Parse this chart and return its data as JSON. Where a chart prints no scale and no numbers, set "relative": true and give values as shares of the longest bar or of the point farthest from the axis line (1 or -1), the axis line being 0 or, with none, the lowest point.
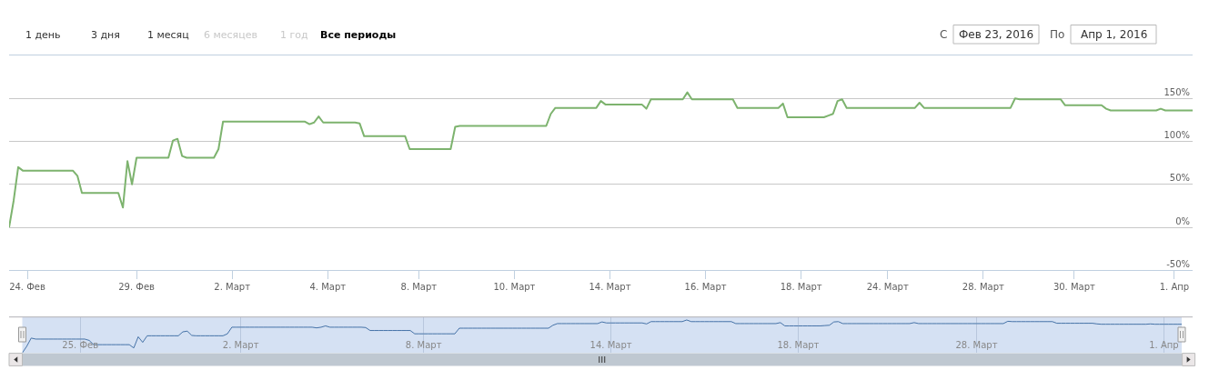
{
  "chart_data": [
    {
      "type": "line",
      "categories": [
        null,
        null,
        null,
        null,
        "24. Фев",
        null,
        null,
        null,
        null,
        null,
        null,
        null,
        null,
        null,
        null,
        null,
        null,
        null,
        null,
        null,
        null,
        null,
        null,
        null,
        null,
        null,
        null,
        null,
        "29. Фев",
        null,
        null,
        null,
        null,
        null,
        null,
        null,
        null,
        null,
        null,
        null,
        null,
        null,
        null,
        null,
        null,
        null,
        null,
        null,
        null,
        "2. Март",
        null,
        null,
        null,
        null,
        null,
        null,
        null,
        null,
        null,
        null,
        null,
        null,
        null,
        null,
        null,
        null,
        null,
        null,
        null,
        null,
        "4. Март",
        null,
        null,
        null,
        null,
        null,
        null,
        null,
        null,
        null,
        null,
        null,
        null,
        null,
        null,
        null,
        null,
        null,
        null,
        null,
        "8. Март",
        null,
        null,
        null,
        null,
        null,
        null,
        null,
        null,
        null,
        null,
        null,
        null,
        null,
        null,
        null,
        null,
        null,
        null,
        null,
        null,
        "10. Март",
        null,
        null,
        null,
        null,
        null,
        null,
        null,
        null,
        null,
        null,
        null,
        null,
        null,
        null,
        null,
        null,
        null,
        null,
        null,
        null,
        "14. Март",
        null,
        null,
        null,
        null,
        null,
        null,
        null,
        null,
        null,
        null,
        null,
        null,
        null,
        null,
        null,
        null,
        null,
        null,
        null,
        null,
        "16. Март",
        null,
        null,
        null,
        null,
        null,
        null,
        null,
        null,
        null,
        null,
        null,
        null,
        null,
        null,
        null,
        null,
        null,
        null,
        null,
        null,
        "18. Март",
        null,
        null,
        null,
        null,
        null,
        null,
        null,
        null,
        null,
        null,
        null,
        null,
        null,
        null,
        null,
        null,
        null,
        null,
        "24. Март",
        null,
        null,
        null,
        null,
        null,
        null,
        null,
        null,
        null,
        null,
        null,
        null,
        null,
        null,
        null,
        null,
        null,
        null,
        null,
        null,
        "28. Март",
        null,
        null,
        null,
        null,
        null,
        null,
        null,
        null,
        null,
        null,
        null,
        null,
        null,
        null,
        null,
        null,
        null,
        null,
        null,
        "30. Март",
        null,
        null,
        null,
        null,
        null,
        null,
        null,
        null,
        null,
        null,
        null,
        null,
        null,
        null,
        null,
        null,
        null,
        null,
        null,
        null,
        null,
        "1. Апр",
        null,
        null,
        null,
        null
      ],
      "series": [
        {
          "color": "#7db36e",
          "values": [
            0,
            31,
            70,
            66,
            66,
            66,
            66,
            66,
            66,
            66,
            66,
            66,
            66,
            66,
            66,
            60,
            40,
            40,
            40,
            40,
            40,
            40,
            40,
            40,
            40,
            23,
            77,
            50,
            81,
            81,
            81,
            81,
            81,
            81,
            81,
            81,
            101,
            103,
            83,
            81,
            81,
            81,
            81,
            81,
            81,
            81,
            91,
            123,
            123,
            123,
            123,
            123,
            123,
            123,
            123,
            123,
            123,
            123,
            123,
            123,
            123,
            123,
            123,
            123,
            123,
            123,
            120,
            122,
            129,
            122,
            122,
            122,
            122,
            122,
            122,
            122,
            122,
            121,
            106,
            106,
            106,
            106,
            106,
            106,
            106,
            106,
            106,
            106,
            91,
            91,
            91,
            91,
            91,
            91,
            91,
            91,
            91,
            91,
            117,
            118,
            118,
            118,
            118,
            118,
            118,
            118,
            118,
            118,
            118,
            118,
            118,
            118,
            118,
            118,
            118,
            118,
            118,
            118,
            118,
            132,
            139,
            139,
            139,
            139,
            139,
            139,
            139,
            139,
            139,
            139,
            147,
            143,
            143,
            143,
            143,
            143,
            143,
            143,
            143,
            143,
            138,
            149,
            149,
            149,
            149,
            149,
            149,
            149,
            149,
            157,
            149,
            149,
            149,
            149,
            149,
            149,
            149,
            149,
            149,
            149,
            139,
            139,
            139,
            139,
            139,
            139,
            139,
            139,
            139,
            139,
            144,
            128,
            128,
            128,
            128,
            128,
            128,
            128,
            128,
            128,
            130,
            132,
            147,
            149,
            139,
            139,
            139,
            139,
            139,
            139,
            139,
            139,
            139,
            139,
            139,
            139,
            139,
            139,
            139,
            139,
            145,
            139,
            139,
            139,
            139,
            139,
            139,
            139,
            139,
            139,
            139,
            139,
            139,
            139,
            139,
            139,
            139,
            139,
            139,
            139,
            139,
            150,
            149,
            149,
            149,
            149,
            149,
            149,
            149,
            149,
            149,
            149,
            142,
            142,
            142,
            142,
            142,
            142,
            142,
            142,
            142,
            138,
            136,
            136,
            136,
            136,
            136,
            136,
            136,
            136,
            136,
            136,
            136,
            138,
            136,
            136,
            136,
            136,
            136,
            136,
            136
          ]
        }
      ],
      "ylim": [
        -50,
        200
      ],
      "yticks": [
        {
          "value": -50,
          "label": "-50%"
        },
        {
          "value": 0,
          "label": "0%"
        },
        {
          "value": 50,
          "label": "50%"
        },
        {
          "value": 100,
          "label": "100%"
        },
        {
          "value": 150,
          "label": "150%"
        },
        {
          "value": 200,
          "label": null
        }
      ],
      "grid": "y",
      "annotations": [
        "1 день",
        "3 дня",
        "1 месяц",
        "6 месяцев",
        "1 год",
        "Все периоды",
        "С",
        "Фев 23, 2016",
        "По",
        "Апр 1, 2016"
      ]
    },
    {
      "type": "line",
      "relative": true,
      "categories": [
        null,
        null,
        null,
        null,
        null,
        null,
        null,
        null,
        null,
        null,
        null,
        null,
        null,
        "25. Фев",
        null,
        null,
        null,
        null,
        null,
        null,
        null,
        null,
        null,
        null,
        null,
        null,
        null,
        null,
        null,
        null,
        null,
        null,
        null,
        null,
        null,
        null,
        null,
        null,
        null,
        null,
        null,
        null,
        null,
        null,
        null,
        null,
        null,
        null,
        null,
        "2. Март",
        null,
        null,
        null,
        null,
        null,
        null,
        null,
        null,
        null,
        null,
        null,
        null,
        null,
        null,
        null,
        null,
        null,
        null,
        null,
        null,
        null,
        null,
        null,
        null,
        null,
        null,
        null,
        null,
        null,
        null,
        null,
        null,
        null,
        null,
        null,
        null,
        null,
        null,
        null,
        null,
        "8. Март",
        null,
        null,
        null,
        null,
        null,
        null,
        null,
        null,
        null,
        null,
        null,
        null,
        null,
        null,
        null,
        null,
        null,
        null,
        null,
        null,
        null,
        null,
        null,
        null,
        null,
        null,
        null,
        null,
        null,
        null,
        null,
        null,
        null,
        null,
        null,
        null,
        null,
        null,
        null,
        null,
        null,
        "14. Март",
        null,
        null,
        null,
        null,
        null,
        null,
        null,
        null,
        null,
        null,
        null,
        null,
        null,
        null,
        null,
        null,
        null,
        null,
        null,
        null,
        null,
        null,
        null,
        null,
        null,
        null,
        null,
        null,
        null,
        null,
        null,
        null,
        null,
        null,
        null,
        null,
        null,
        null,
        null,
        null,
        null,
        "18. Март",
        null,
        null,
        null,
        null,
        null,
        null,
        null,
        null,
        null,
        null,
        null,
        null,
        null,
        null,
        null,
        null,
        null,
        null,
        null,
        null,
        null,
        null,
        null,
        null,
        null,
        null,
        null,
        null,
        null,
        null,
        null,
        null,
        null,
        null,
        null,
        null,
        null,
        null,
        null,
        "28. Март",
        null,
        null,
        null,
        null,
        null,
        null,
        null,
        null,
        null,
        null,
        null,
        null,
        null,
        null,
        null,
        null,
        null,
        null,
        null,
        null,
        null,
        null,
        null,
        null,
        null,
        null,
        null,
        null,
        null,
        null,
        null,
        null,
        null,
        null,
        null,
        null,
        null,
        null,
        null,
        null,
        null,
        "1. Апр",
        null,
        null,
        null,
        null
      ],
      "series": [
        {
          "color": "#4572a7",
          "values": [
            0,
            0.2,
            0.45,
            0.42,
            0.42,
            0.42,
            0.42,
            0.42,
            0.42,
            0.42,
            0.42,
            0.42,
            0.42,
            0.42,
            0.42,
            0.38,
            0.25,
            0.25,
            0.25,
            0.25,
            0.25,
            0.25,
            0.25,
            0.25,
            0.25,
            0.15,
            0.49,
            0.32,
            0.52,
            0.52,
            0.52,
            0.52,
            0.52,
            0.52,
            0.52,
            0.52,
            0.64,
            0.66,
            0.53,
            0.52,
            0.52,
            0.52,
            0.52,
            0.52,
            0.52,
            0.52,
            0.58,
            0.78,
            0.78,
            0.78,
            0.78,
            0.78,
            0.78,
            0.78,
            0.78,
            0.78,
            0.78,
            0.78,
            0.78,
            0.78,
            0.78,
            0.78,
            0.78,
            0.78,
            0.78,
            0.78,
            0.76,
            0.78,
            0.82,
            0.78,
            0.78,
            0.78,
            0.78,
            0.78,
            0.78,
            0.78,
            0.78,
            0.77,
            0.68,
            0.68,
            0.68,
            0.68,
            0.68,
            0.68,
            0.68,
            0.68,
            0.68,
            0.68,
            0.58,
            0.58,
            0.58,
            0.58,
            0.58,
            0.58,
            0.58,
            0.58,
            0.58,
            0.58,
            0.75,
            0.75,
            0.75,
            0.75,
            0.75,
            0.75,
            0.75,
            0.75,
            0.75,
            0.75,
            0.75,
            0.75,
            0.75,
            0.75,
            0.75,
            0.75,
            0.75,
            0.75,
            0.75,
            0.75,
            0.75,
            0.84,
            0.89,
            0.89,
            0.89,
            0.89,
            0.89,
            0.89,
            0.89,
            0.89,
            0.89,
            0.89,
            0.94,
            0.91,
            0.91,
            0.91,
            0.91,
            0.91,
            0.91,
            0.91,
            0.91,
            0.91,
            0.88,
            0.95,
            0.95,
            0.95,
            0.95,
            0.95,
            0.95,
            0.95,
            0.95,
            1,
            0.95,
            0.95,
            0.95,
            0.95,
            0.95,
            0.95,
            0.95,
            0.95,
            0.95,
            0.95,
            0.89,
            0.89,
            0.89,
            0.89,
            0.89,
            0.89,
            0.89,
            0.89,
            0.89,
            0.89,
            0.92,
            0.82,
            0.82,
            0.82,
            0.82,
            0.82,
            0.82,
            0.82,
            0.82,
            0.82,
            0.83,
            0.84,
            0.94,
            0.95,
            0.89,
            0.89,
            0.89,
            0.89,
            0.89,
            0.89,
            0.89,
            0.89,
            0.89,
            0.89,
            0.89,
            0.89,
            0.89,
            0.89,
            0.89,
            0.89,
            0.92,
            0.89,
            0.89,
            0.89,
            0.89,
            0.89,
            0.89,
            0.89,
            0.89,
            0.89,
            0.89,
            0.89,
            0.89,
            0.89,
            0.89,
            0.89,
            0.89,
            0.89,
            0.89,
            0.89,
            0.89,
            0.96,
            0.95,
            0.95,
            0.95,
            0.95,
            0.95,
            0.95,
            0.95,
            0.95,
            0.95,
            0.95,
            0.9,
            0.9,
            0.9,
            0.9,
            0.9,
            0.9,
            0.9,
            0.9,
            0.9,
            0.88,
            0.87,
            0.87,
            0.87,
            0.87,
            0.87,
            0.87,
            0.87,
            0.87,
            0.87,
            0.87,
            0.87,
            0.88,
            0.87,
            0.87,
            0.87,
            0.87,
            0.87,
            0.87,
            0.87
          ]
        }
      ],
      "grid": "x"
    }
  ]
}
